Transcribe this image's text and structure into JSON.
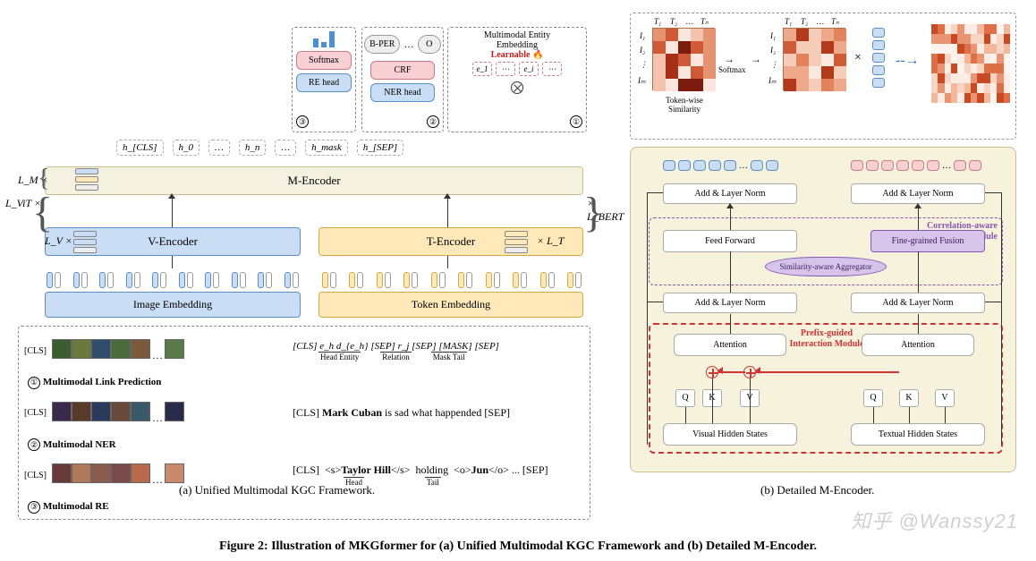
{
  "global": {
    "figure_caption": "Figure 2: Illustration of MKGformer for (a) Unified Multimodal KGC Framework and (b) Detailed M-Encoder.",
    "left_subcaption": "(a)  Unified Multimodal KGC Framework.",
    "right_subcaption": "(b)  Detailed M-Encoder.",
    "watermark": "知乎 @Wanssy21"
  },
  "colors": {
    "visual_fill": "#c9ddf4",
    "visual_border": "#5b8fc4",
    "text_fill": "#ffe9b8",
    "text_border": "#d4a940",
    "menc_fill": "#f5f1e0",
    "menc_border": "#c7be91",
    "pink_fill": "#f8cfd3",
    "pink_border": "#c97a85",
    "purple_fill": "#d7c4ea",
    "purple_border": "#8656b7",
    "red": "#d23434",
    "bg_right": "#f7f2dc"
  },
  "left": {
    "cls": "[CLS]",
    "image_embedding": "Image Embedding",
    "token_embedding": "Token Embedding",
    "v_encoder": "V-Encoder",
    "t_encoder": "T-Encoder",
    "m_encoder": "M-Encoder",
    "lv": "L_V ×",
    "lt": "× L_T",
    "lm": "L_M ×",
    "lvit": "L_ViT ×",
    "lbert": "× L_BERT",
    "h_outputs": [
      "h_[CLS]",
      "h_0",
      "…",
      "h_n",
      "…",
      "h_mask",
      "h_[SEP]"
    ],
    "top": {
      "re": {
        "bars": [
          10,
          6,
          18
        ],
        "softmax": "Softmax",
        "re_head": "RE head",
        "idx": "③"
      },
      "ner": {
        "tags": [
          "B-PER",
          "…",
          "O"
        ],
        "crf": "CRF",
        "ner_head": "NER head",
        "idx": "②"
      },
      "mme": {
        "title1": "Multimodal Entity",
        "title2": "Embedding",
        "learnable": "Learnable 🔥",
        "cells": [
          "e_1",
          "⋯",
          "e_i",
          "⋯"
        ],
        "idx": "①"
      }
    },
    "rows": {
      "r1": {
        "idx": "①",
        "title": "Multimodal Link Prediction",
        "patch_colors": [
          "#3b5d2f",
          "#6b7a3a",
          "#2f4e6b",
          "#4a6b3a",
          "#7a5a3a",
          "#5a7a4a"
        ],
        "right_tokens": [
          "[CLS]",
          "e_h",
          "d_{e_h}",
          "[SEP]",
          "r_j",
          "[SEP]",
          "[MASK]",
          "[SEP]"
        ],
        "under": {
          "head": "Head Entity",
          "rel": "Relation",
          "tail": "Mask Tail"
        }
      },
      "r2": {
        "idx": "②",
        "title": "Multimodal NER",
        "patch_colors": [
          "#3a2a4a",
          "#5a3a2a",
          "#2a3a5a",
          "#6a4a3a",
          "#3a5a6a",
          "#2a2a4a"
        ],
        "right_text": "[CLS] Mark Cuban is sad what happended [SEP]",
        "bold": "Mark Cuban"
      },
      "r3": {
        "idx": "③",
        "title": "Multimodal RE",
        "patch_colors": [
          "#6a3a3a",
          "#b07a5a",
          "#8a5a4a",
          "#7a4a4a",
          "#b86a4a",
          "#c88a6a"
        ],
        "right_text_parts": [
          "[CLS]  <s>",
          "Taylor Hill",
          "</s>  holding  <o>",
          "Jun",
          "</o> ... [SEP]"
        ],
        "head": "Head",
        "tail": "Tail"
      }
    }
  },
  "right": {
    "heat": {
      "rows": [
        "I_1",
        "I_2",
        "…",
        "I_m"
      ],
      "cols": [
        "T_1",
        "T_2",
        "…",
        "T_n"
      ],
      "similarity_caption": "Token-wise Similarity",
      "softmax": "Softmax",
      "grid1_palette": [
        "#fbe6de",
        "#f3c3ad",
        "#e69470",
        "#cf5a37",
        "#a62f17",
        "#7c1b0d"
      ],
      "grid2_palette": [
        "#fce9df",
        "#f6cdb8",
        "#eda989",
        "#e3835c",
        "#d05c35",
        "#b23a1a"
      ],
      "grid3_palette": [
        "#fdece3",
        "#f8d4c2",
        "#f1b89c",
        "#e99574",
        "#df6f47",
        "#c94a22",
        "#fff3ee"
      ],
      "grid1_size": 5,
      "grid2_size": 5,
      "grid3_rows": 8,
      "grid3_cols": 12
    },
    "blocks": {
      "add_ln": "Add & Layer Norm",
      "feed_forward": "Feed Forward",
      "fine_fusion": "Fine-grained Fusion",
      "aggregator": "Similarity-aware Aggregator",
      "attention": "Attention",
      "vhs": "Visual Hidden States",
      "ths": "Textual Hidden States",
      "q": "Q",
      "k": "K",
      "v": "V",
      "fusion_label_a": "Correlation-aware",
      "fusion_label_b": "Fusion Module",
      "prefix_label_a": "Prefix-guided",
      "prefix_label_b": "Interaction Module"
    }
  }
}
